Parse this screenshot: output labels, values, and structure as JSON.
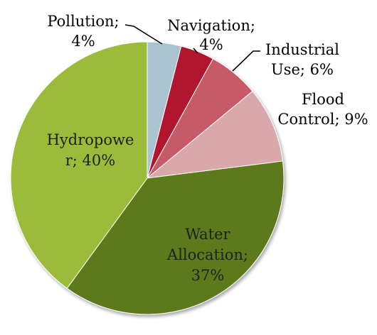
{
  "chart_data": {
    "type": "pie",
    "slices": [
      {
        "label": "Pollution",
        "value": 4,
        "color": "#a9c4d0"
      },
      {
        "label": "Navigation",
        "value": 4,
        "color": "#b1122e"
      },
      {
        "label": "Industrial Use",
        "value": 6,
        "color": "#c65a66"
      },
      {
        "label": "Flood Control",
        "value": 9,
        "color": "#d9a8ab"
      },
      {
        "label": "Water Allocation",
        "value": 37,
        "color": "#5c7a1f"
      },
      {
        "label": "Hydropower",
        "value": 40,
        "color": "#9bbb3a"
      }
    ],
    "data_labels": [
      {
        "lines": [
          "Pollution;",
          "4%"
        ]
      },
      {
        "lines": [
          "Navigation;",
          "4%"
        ]
      },
      {
        "lines": [
          "Industrial",
          "Use; 6%"
        ]
      },
      {
        "lines": [
          "Flood",
          "Control; 9%"
        ]
      },
      {
        "lines": [
          "Water",
          "Allocation;",
          "37%"
        ]
      },
      {
        "lines": [
          "Hydropowe",
          "r; 40%"
        ]
      }
    ],
    "legend": "none"
  }
}
